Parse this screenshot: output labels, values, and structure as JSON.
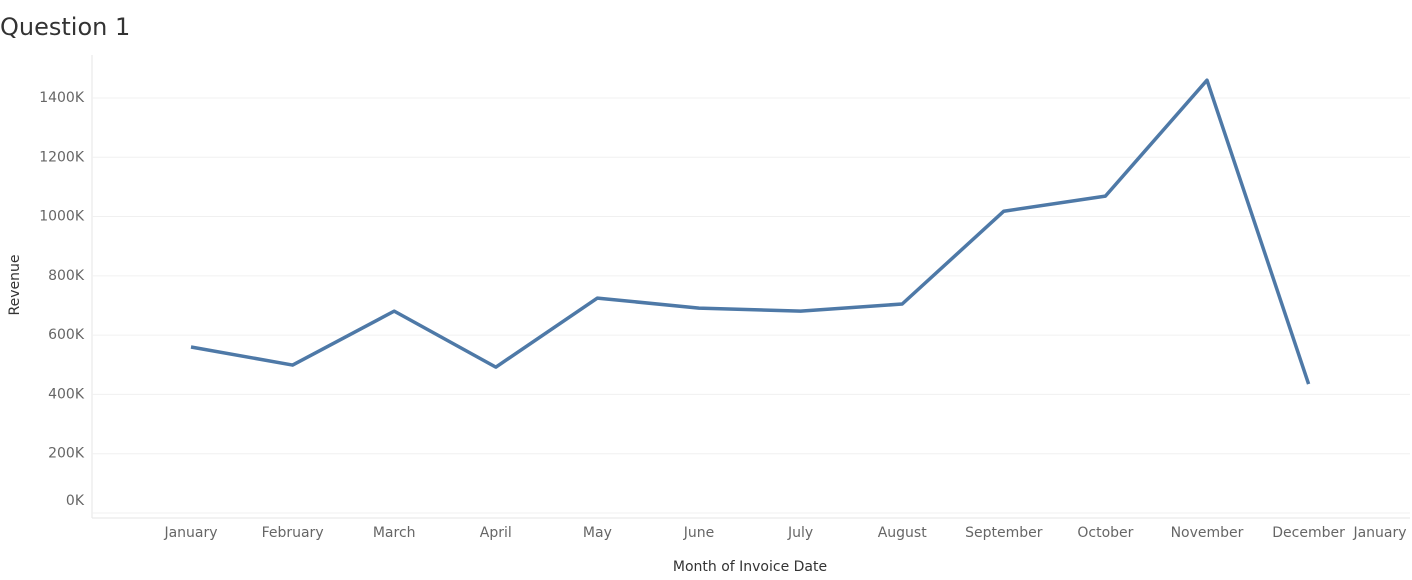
{
  "chart_data": {
    "type": "line",
    "title": "Question 1",
    "x_label": "Month of Invoice Date",
    "y_label": "Revenue",
    "categories": [
      "January",
      "February",
      "March",
      "April",
      "May",
      "June",
      "July",
      "August",
      "September",
      "October",
      "November",
      "December",
      "January"
    ],
    "series": [
      {
        "name": "Revenue",
        "color": "#4e79a7",
        "values": [
          560000,
          499000,
          681000,
          492000,
          725000,
          691000,
          681000,
          705000,
          1018000,
          1069000,
          1460000,
          435000,
          null
        ]
      }
    ],
    "ylim": [
      0,
      1545000
    ],
    "yticks": [
      {
        "value": 0,
        "label": "0K"
      },
      {
        "value": 200000,
        "label": "200K"
      },
      {
        "value": 400000,
        "label": "400K"
      },
      {
        "value": 600000,
        "label": "600K"
      },
      {
        "value": 800000,
        "label": "800K"
      },
      {
        "value": 1000000,
        "label": "1000K"
      },
      {
        "value": 1200000,
        "label": "1200K"
      },
      {
        "value": 1400000,
        "label": "1400K"
      }
    ],
    "grid": true
  }
}
